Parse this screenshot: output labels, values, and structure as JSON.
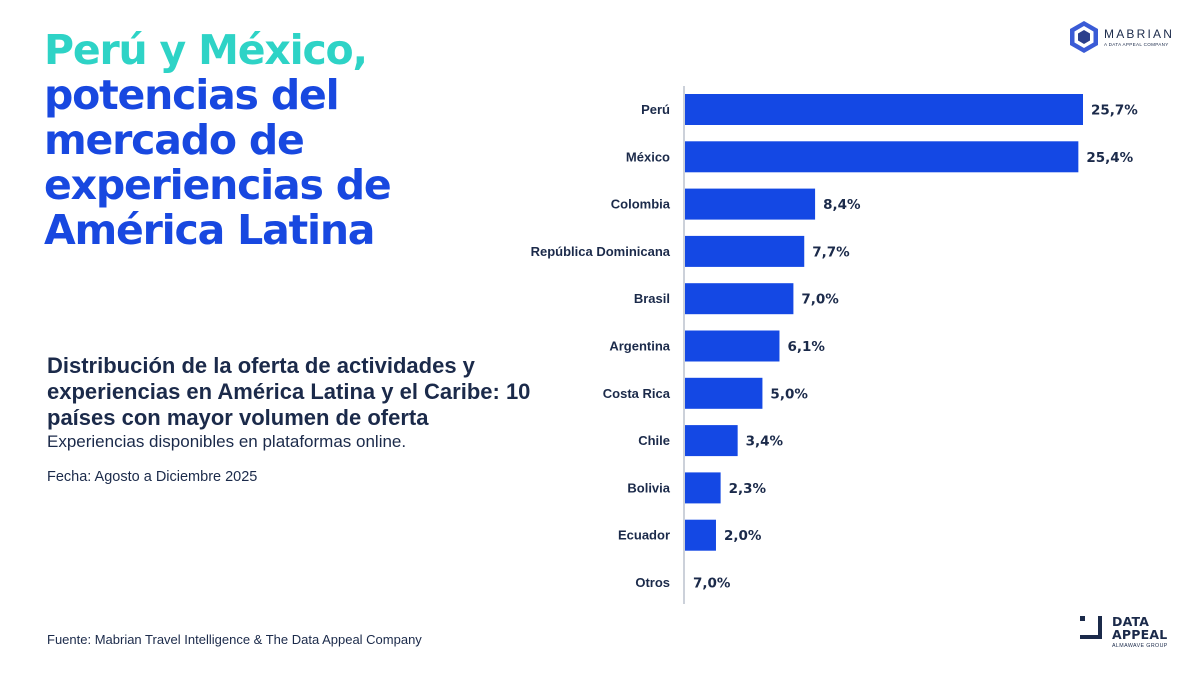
{
  "headline": {
    "accent": "Perú y México,",
    "main": "potencias del mercado de experiencias de América Latina"
  },
  "subhead": {
    "title": "Distribución de la oferta de actividades y experiencias en América Latina y el Caribe: 10 países con mayor volumen de oferta",
    "description": "Experiencias disponibles en plataformas online."
  },
  "date": "Fecha: Agosto a Diciembre 2025",
  "source": "Fuente: Mabrian Travel Intelligence & The Data Appeal Company",
  "logos": {
    "mabrian": {
      "name": "MABRIAN",
      "tagline": "A DATA APPEAL COMPANY"
    },
    "data_appeal": {
      "line1": "DATA",
      "line2": "APPEAL",
      "tagline": "ALMAWAVE GROUP"
    }
  },
  "colors": {
    "bar": "#1448e4",
    "accent": "#2ed3c6",
    "headline": "#1848e0",
    "text": "#1b2a4a",
    "axis": "#9aa3b5"
  },
  "chart_data": {
    "type": "bar",
    "orientation": "horizontal",
    "categories": [
      "Perú",
      "México",
      "Colombia",
      "República Dominicana",
      "Brasil",
      "Argentina",
      "Costa Rica",
      "Chile",
      "Bolivia",
      "Ecuador",
      "Otros"
    ],
    "values": [
      25.7,
      25.4,
      8.4,
      7.7,
      7.0,
      6.1,
      5.0,
      3.4,
      2.3,
      2.0,
      7.0
    ],
    "value_labels": [
      "25,7%",
      "25,4%",
      "8,4%",
      "7,7%",
      "7,0%",
      "6,1%",
      "5,0%",
      "3,4%",
      "2,3%",
      "2,0%",
      "7,0%"
    ],
    "drawn_values": [
      25.7,
      25.4,
      8.4,
      7.7,
      7.0,
      6.1,
      5.0,
      3.4,
      2.3,
      2.0,
      0
    ],
    "xlim": [
      0,
      26
    ],
    "grid": false,
    "legend": "none"
  }
}
